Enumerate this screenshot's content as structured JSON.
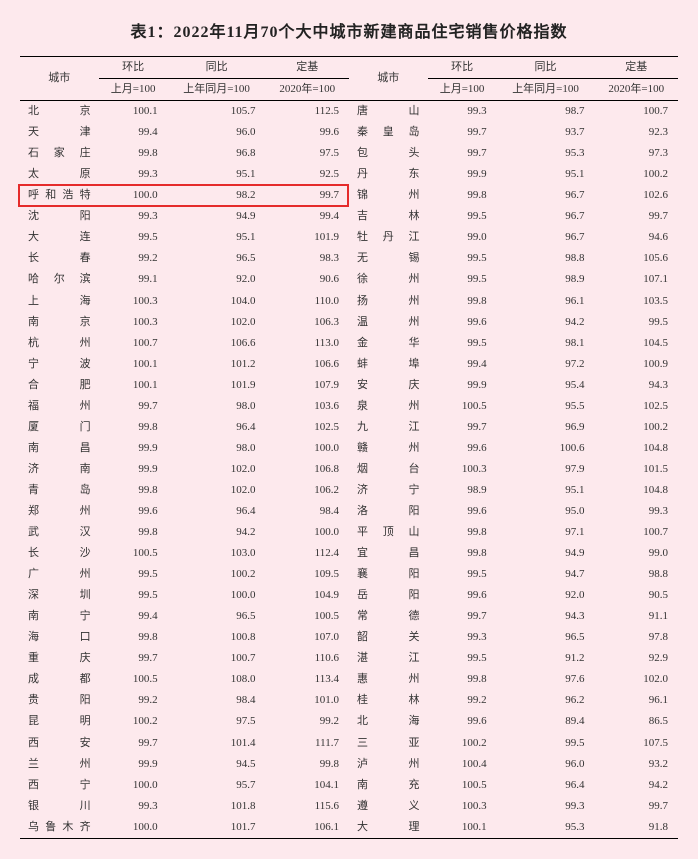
{
  "title": "表1：2022年11月70个大中城市新建商品住宅销售价格指数",
  "headers": {
    "city": "城市",
    "huanbi": "环比",
    "tongbi": "同比",
    "dingji": "定基",
    "sub_huanbi": "上月=100",
    "sub_tongbi": "上年同月=100",
    "sub_dingji": "2020年=100"
  },
  "highlight": {
    "row_index": 4,
    "color": "#e52b2b"
  },
  "left": [
    {
      "city": "北　京",
      "huanbi": "100.1",
      "tongbi": "105.7",
      "dingji": "112.5"
    },
    {
      "city": "天　津",
      "huanbi": "99.4",
      "tongbi": "96.0",
      "dingji": "99.6"
    },
    {
      "city": "石 家 庄",
      "huanbi": "99.8",
      "tongbi": "96.8",
      "dingji": "97.5"
    },
    {
      "city": "太　原",
      "huanbi": "99.3",
      "tongbi": "95.1",
      "dingji": "92.5"
    },
    {
      "city": "呼和浩特",
      "huanbi": "100.0",
      "tongbi": "98.2",
      "dingji": "99.7"
    },
    {
      "city": "沈　阳",
      "huanbi": "99.3",
      "tongbi": "94.9",
      "dingji": "99.4"
    },
    {
      "city": "大　连",
      "huanbi": "99.5",
      "tongbi": "95.1",
      "dingji": "101.9"
    },
    {
      "city": "长　春",
      "huanbi": "99.2",
      "tongbi": "96.5",
      "dingji": "98.3"
    },
    {
      "city": "哈 尔 滨",
      "huanbi": "99.1",
      "tongbi": "92.0",
      "dingji": "90.6"
    },
    {
      "city": "上　海",
      "huanbi": "100.3",
      "tongbi": "104.0",
      "dingji": "110.0"
    },
    {
      "city": "南　京",
      "huanbi": "100.3",
      "tongbi": "102.0",
      "dingji": "106.3"
    },
    {
      "city": "杭　州",
      "huanbi": "100.7",
      "tongbi": "106.6",
      "dingji": "113.0"
    },
    {
      "city": "宁　波",
      "huanbi": "100.1",
      "tongbi": "101.2",
      "dingji": "106.6"
    },
    {
      "city": "合　肥",
      "huanbi": "100.1",
      "tongbi": "101.9",
      "dingji": "107.9"
    },
    {
      "city": "福　州",
      "huanbi": "99.7",
      "tongbi": "98.0",
      "dingji": "103.6"
    },
    {
      "city": "厦　门",
      "huanbi": "99.8",
      "tongbi": "96.4",
      "dingji": "102.5"
    },
    {
      "city": "南　昌",
      "huanbi": "99.9",
      "tongbi": "98.0",
      "dingji": "100.0"
    },
    {
      "city": "济　南",
      "huanbi": "99.9",
      "tongbi": "102.0",
      "dingji": "106.8"
    },
    {
      "city": "青　岛",
      "huanbi": "99.8",
      "tongbi": "102.0",
      "dingji": "106.2"
    },
    {
      "city": "郑　州",
      "huanbi": "99.6",
      "tongbi": "96.4",
      "dingji": "98.4"
    },
    {
      "city": "武　汉",
      "huanbi": "99.8",
      "tongbi": "94.2",
      "dingji": "100.0"
    },
    {
      "city": "长　沙",
      "huanbi": "100.5",
      "tongbi": "103.0",
      "dingji": "112.4"
    },
    {
      "city": "广　州",
      "huanbi": "99.5",
      "tongbi": "100.2",
      "dingji": "109.5"
    },
    {
      "city": "深　圳",
      "huanbi": "99.5",
      "tongbi": "100.0",
      "dingji": "104.9"
    },
    {
      "city": "南　宁",
      "huanbi": "99.4",
      "tongbi": "96.5",
      "dingji": "100.5"
    },
    {
      "city": "海　口",
      "huanbi": "99.8",
      "tongbi": "100.8",
      "dingji": "107.0"
    },
    {
      "city": "重　庆",
      "huanbi": "99.7",
      "tongbi": "100.7",
      "dingji": "110.6"
    },
    {
      "city": "成　都",
      "huanbi": "100.5",
      "tongbi": "108.0",
      "dingji": "113.4"
    },
    {
      "city": "贵　阳",
      "huanbi": "99.2",
      "tongbi": "98.4",
      "dingji": "101.0"
    },
    {
      "city": "昆　明",
      "huanbi": "100.2",
      "tongbi": "97.5",
      "dingji": "99.2"
    },
    {
      "city": "西　安",
      "huanbi": "99.7",
      "tongbi": "101.4",
      "dingji": "111.7"
    },
    {
      "city": "兰　州",
      "huanbi": "99.9",
      "tongbi": "94.5",
      "dingji": "99.8"
    },
    {
      "city": "西　宁",
      "huanbi": "100.0",
      "tongbi": "95.7",
      "dingji": "104.1"
    },
    {
      "city": "银　川",
      "huanbi": "99.3",
      "tongbi": "101.8",
      "dingji": "115.6"
    },
    {
      "city": "乌鲁木齐",
      "huanbi": "100.0",
      "tongbi": "101.7",
      "dingji": "106.1"
    }
  ],
  "right": [
    {
      "city": "唐　山",
      "huanbi": "99.3",
      "tongbi": "98.7",
      "dingji": "100.7"
    },
    {
      "city": "秦 皇 岛",
      "huanbi": "99.7",
      "tongbi": "93.7",
      "dingji": "92.3"
    },
    {
      "city": "包　头",
      "huanbi": "99.7",
      "tongbi": "95.3",
      "dingji": "97.3"
    },
    {
      "city": "丹　东",
      "huanbi": "99.9",
      "tongbi": "95.1",
      "dingji": "100.2"
    },
    {
      "city": "锦　州",
      "huanbi": "99.8",
      "tongbi": "96.7",
      "dingji": "102.6"
    },
    {
      "city": "吉　林",
      "huanbi": "99.5",
      "tongbi": "96.7",
      "dingji": "99.7"
    },
    {
      "city": "牡 丹 江",
      "huanbi": "99.0",
      "tongbi": "96.7",
      "dingji": "94.6"
    },
    {
      "city": "无　锡",
      "huanbi": "99.5",
      "tongbi": "98.8",
      "dingji": "105.6"
    },
    {
      "city": "徐　州",
      "huanbi": "99.5",
      "tongbi": "98.9",
      "dingji": "107.1"
    },
    {
      "city": "扬　州",
      "huanbi": "99.8",
      "tongbi": "96.1",
      "dingji": "103.5"
    },
    {
      "city": "温　州",
      "huanbi": "99.6",
      "tongbi": "94.2",
      "dingji": "99.5"
    },
    {
      "city": "金　华",
      "huanbi": "99.5",
      "tongbi": "98.1",
      "dingji": "104.5"
    },
    {
      "city": "蚌　埠",
      "huanbi": "99.4",
      "tongbi": "97.2",
      "dingji": "100.9"
    },
    {
      "city": "安　庆",
      "huanbi": "99.9",
      "tongbi": "95.4",
      "dingji": "94.3"
    },
    {
      "city": "泉　州",
      "huanbi": "100.5",
      "tongbi": "95.5",
      "dingji": "102.5"
    },
    {
      "city": "九　江",
      "huanbi": "99.7",
      "tongbi": "96.9",
      "dingji": "100.2"
    },
    {
      "city": "赣　州",
      "huanbi": "99.6",
      "tongbi": "100.6",
      "dingji": "104.8"
    },
    {
      "city": "烟　台",
      "huanbi": "100.3",
      "tongbi": "97.9",
      "dingji": "101.5"
    },
    {
      "city": "济　宁",
      "huanbi": "98.9",
      "tongbi": "95.1",
      "dingji": "104.8"
    },
    {
      "city": "洛　阳",
      "huanbi": "99.6",
      "tongbi": "95.0",
      "dingji": "99.3"
    },
    {
      "city": "平 顶 山",
      "huanbi": "99.8",
      "tongbi": "97.1",
      "dingji": "100.7"
    },
    {
      "city": "宜　昌",
      "huanbi": "99.8",
      "tongbi": "94.9",
      "dingji": "99.0"
    },
    {
      "city": "襄　阳",
      "huanbi": "99.5",
      "tongbi": "94.7",
      "dingji": "98.8"
    },
    {
      "city": "岳　阳",
      "huanbi": "99.6",
      "tongbi": "92.0",
      "dingji": "90.5"
    },
    {
      "city": "常　德",
      "huanbi": "99.7",
      "tongbi": "94.3",
      "dingji": "91.1"
    },
    {
      "city": "韶　关",
      "huanbi": "99.3",
      "tongbi": "96.5",
      "dingji": "97.8"
    },
    {
      "city": "湛　江",
      "huanbi": "99.5",
      "tongbi": "91.2",
      "dingji": "92.9"
    },
    {
      "city": "惠　州",
      "huanbi": "99.8",
      "tongbi": "97.6",
      "dingji": "102.0"
    },
    {
      "city": "桂　林",
      "huanbi": "99.2",
      "tongbi": "96.2",
      "dingji": "96.1"
    },
    {
      "city": "北　海",
      "huanbi": "99.6",
      "tongbi": "89.4",
      "dingji": "86.5"
    },
    {
      "city": "三　亚",
      "huanbi": "100.2",
      "tongbi": "99.5",
      "dingji": "107.5"
    },
    {
      "city": "泸　州",
      "huanbi": "100.4",
      "tongbi": "96.0",
      "dingji": "93.2"
    },
    {
      "city": "南　充",
      "huanbi": "100.5",
      "tongbi": "96.4",
      "dingji": "94.2"
    },
    {
      "city": "遵　义",
      "huanbi": "100.3",
      "tongbi": "99.3",
      "dingji": "99.7"
    },
    {
      "city": "大　理",
      "huanbi": "100.1",
      "tongbi": "95.3",
      "dingji": "91.8"
    }
  ]
}
